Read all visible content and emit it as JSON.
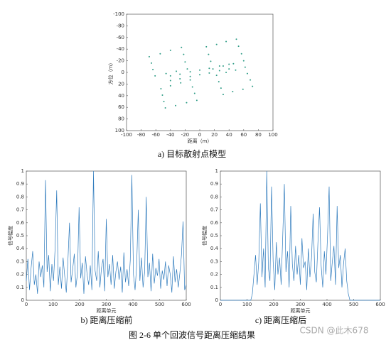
{
  "chart_data": [
    {
      "type": "scatter",
      "caption": "a)  目标散射点模型",
      "xlabel": "距离（m）",
      "ylabel": "方位（m）",
      "color": "#2e9c86",
      "xlim": [
        -100,
        100
      ],
      "ylim": [
        -100,
        100
      ],
      "y_inverted": true,
      "xticks": [
        -100,
        -80,
        -60,
        -40,
        -20,
        0,
        20,
        40,
        60,
        80,
        100
      ],
      "yticks": [
        -100,
        -80,
        -60,
        -40,
        -20,
        0,
        20,
        40,
        60,
        80,
        100
      ],
      "x": [
        -69,
        -54,
        -40,
        -25,
        -22,
        -20,
        -17,
        -32,
        -46,
        -61,
        -64,
        -66,
        9,
        23,
        36,
        50,
        53,
        57,
        60,
        46,
        32,
        18,
        15,
        12,
        -53,
        -40,
        -26,
        -13,
        -10,
        -7,
        -4,
        -18,
        -33,
        -47,
        -49,
        -51,
        23,
        36,
        49,
        62,
        65,
        69,
        72,
        59,
        45,
        32,
        29,
        26,
        -40,
        -27,
        -13,
        0,
        13,
        27,
        40,
        -40,
        -27,
        -13,
        0,
        13,
        27,
        40
      ],
      "y": [
        -27,
        -32,
        -38,
        -43,
        -31,
        -18,
        -6,
        -2,
        2,
        6,
        -5,
        -16,
        -44,
        -48,
        -53,
        -57,
        -45,
        -32,
        -20,
        -15,
        -11,
        -6,
        -19,
        -31,
        28,
        23,
        18,
        13,
        25,
        36,
        48,
        52,
        57,
        61,
        50,
        39,
        5,
        0,
        -4,
        -9,
        2,
        13,
        24,
        29,
        33,
        38,
        27,
        16,
        6,
        3,
        -1,
        -4,
        -7,
        -11,
        -14,
        14,
        11,
        7,
        4,
        1,
        -3,
        -6
      ]
    },
    {
      "type": "line",
      "caption": "b)  距离压缩前",
      "xlabel": "距离单元",
      "ylabel": "信号幅度",
      "color": "#2f7bbd",
      "xlim": [
        0,
        600
      ],
      "ylim": [
        0,
        1
      ],
      "xticks": [
        0,
        100,
        200,
        300,
        400,
        500,
        600
      ],
      "yticks": [
        0,
        0.1,
        0.2,
        0.3,
        0.4,
        0.5,
        0.6,
        0.7,
        0.8,
        0.9,
        1
      ],
      "x": [
        0,
        6,
        12,
        18,
        24,
        30,
        36,
        42,
        48,
        54,
        60,
        66,
        72,
        78,
        84,
        90,
        96,
        102,
        108,
        114,
        120,
        126,
        132,
        138,
        144,
        150,
        156,
        162,
        168,
        174,
        180,
        186,
        192,
        198,
        204,
        210,
        216,
        222,
        228,
        234,
        240,
        246,
        252,
        258,
        264,
        270,
        276,
        282,
        288,
        294,
        300,
        306,
        312,
        318,
        324,
        330,
        336,
        342,
        348,
        354,
        360,
        366,
        372,
        378,
        384,
        390,
        396,
        402,
        408,
        414,
        420,
        426,
        432,
        438,
        444,
        450,
        456,
        462,
        468,
        474,
        480,
        486,
        492,
        498,
        504,
        510,
        516,
        522,
        528,
        534,
        540,
        546,
        552,
        558,
        564,
        570,
        576,
        582,
        588,
        594,
        600
      ],
      "values": [
        0.15,
        0.32,
        0.08,
        0.25,
        0.38,
        0.12,
        0.2,
        0.05,
        0.3,
        0.18,
        0.27,
        0.1,
        0.93,
        0.22,
        0.35,
        0.07,
        0.28,
        0.15,
        0.4,
        0.85,
        0.12,
        0.26,
        0.09,
        0.33,
        0.19,
        0.06,
        0.3,
        0.6,
        0.14,
        0.24,
        0.36,
        0.1,
        0.21,
        0.72,
        0.17,
        0.29,
        0.05,
        0.34,
        0.2,
        0.12,
        0.27,
        0.08,
        1.0,
        0.23,
        0.15,
        0.38,
        0.1,
        0.25,
        0.32,
        0.07,
        0.63,
        0.18,
        0.28,
        0.12,
        0.35,
        0.09,
        0.22,
        0.3,
        0.16,
        0.26,
        0.06,
        0.37,
        0.14,
        0.24,
        0.11,
        0.31,
        0.97,
        0.2,
        0.08,
        0.27,
        0.7,
        0.15,
        0.33,
        0.1,
        0.22,
        0.8,
        0.18,
        0.29,
        0.07,
        0.36,
        0.13,
        0.25,
        0.19,
        0.32,
        0.09,
        0.23,
        0.16,
        0.3,
        0.11,
        0.27,
        0.2,
        0.06,
        0.34,
        0.14,
        0.24,
        0.1,
        0.21,
        0.35,
        0.61,
        0.08,
        0.12
      ]
    },
    {
      "type": "line",
      "caption": "c)  距离压缩后",
      "xlabel": "距离单元",
      "ylabel": "信号幅度",
      "color": "#2f7bbd",
      "xlim": [
        0,
        600
      ],
      "ylim": [
        0,
        1
      ],
      "xticks": [
        0,
        100,
        200,
        300,
        400,
        500,
        600
      ],
      "yticks": [
        0,
        0.1,
        0.2,
        0.3,
        0.4,
        0.5,
        0.6,
        0.7,
        0.8,
        0.9,
        1
      ],
      "x": [
        0,
        6,
        12,
        18,
        24,
        30,
        36,
        42,
        48,
        54,
        60,
        66,
        72,
        78,
        84,
        90,
        96,
        102,
        108,
        114,
        120,
        126,
        132,
        138,
        144,
        150,
        156,
        162,
        168,
        174,
        180,
        186,
        192,
        198,
        204,
        210,
        216,
        222,
        228,
        234,
        240,
        246,
        252,
        258,
        264,
        270,
        276,
        282,
        288,
        294,
        300,
        306,
        312,
        318,
        324,
        330,
        336,
        342,
        348,
        354,
        360,
        366,
        372,
        378,
        384,
        390,
        396,
        402,
        408,
        414,
        420,
        426,
        432,
        438,
        444,
        450,
        456,
        462,
        468,
        474,
        480,
        486,
        492,
        498,
        504,
        510,
        516,
        522,
        528,
        534,
        540,
        546,
        552,
        558,
        564,
        570,
        576,
        582,
        588,
        594,
        600
      ],
      "values": [
        0,
        0,
        0,
        0,
        0,
        0,
        0,
        0,
        0,
        0,
        0,
        0,
        0,
        0,
        0,
        0,
        0,
        0,
        0,
        0,
        0.05,
        0.2,
        0.35,
        0.12,
        0.3,
        0.75,
        0.18,
        0.4,
        0.1,
        1.0,
        0.25,
        0.15,
        0.88,
        0.3,
        0.08,
        0.45,
        0.2,
        0.33,
        0.12,
        0.5,
        0.9,
        0.22,
        0.38,
        0.1,
        0.73,
        0.28,
        0.15,
        0.42,
        0.2,
        0.35,
        0.12,
        0.48,
        0.25,
        0.3,
        0.08,
        0.4,
        0.18,
        0.33,
        0.67,
        0.22,
        0.14,
        0.45,
        0.72,
        0.27,
        0.1,
        0.38,
        0.2,
        0.5,
        0.88,
        0.15,
        0.3,
        0.42,
        0.12,
        0.73,
        0.25,
        0.35,
        0.1,
        0.28,
        0.4,
        0.15,
        0.05,
        0,
        0,
        0,
        0,
        0,
        0,
        0,
        0,
        0,
        0,
        0,
        0,
        0,
        0,
        0,
        0,
        0,
        0,
        0,
        0
      ]
    }
  ],
  "figure_caption": "图 2-6  单个回波信号距离压缩结果",
  "watermark": "CSDN @此木678"
}
